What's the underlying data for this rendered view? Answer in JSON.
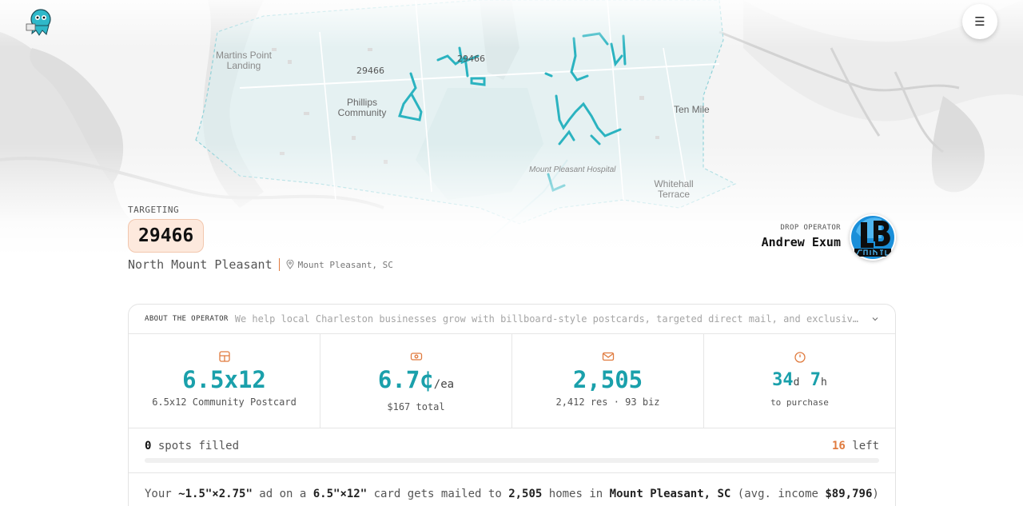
{
  "map": {
    "labels": {
      "martins_point": "Martins Point Landing",
      "zip_a": "29466",
      "zip_b": "29466",
      "phillips": "Phillips Community",
      "ten_mile": "Ten Mile",
      "hospital": "Mount Pleasant Hospital",
      "whitehall": "Whitehall Terrace"
    },
    "route_color": "#2bb3c0"
  },
  "header": {
    "menu_icon": "☰"
  },
  "targeting": {
    "label": "TARGETING",
    "zip": "29466",
    "area": "North Mount Pleasant",
    "city": "Mount Pleasant, SC"
  },
  "operator": {
    "label": "DROP OPERATOR",
    "name": "Andrew Exum"
  },
  "about": {
    "label": "ABOUT THE OPERATOR",
    "text": "We help local Charleston businesses grow with billboard-style postcards, targeted direct mail, and exclusive placement."
  },
  "stats": {
    "size": {
      "value": "6.5x12",
      "sub": "6.5x12 Community Postcard"
    },
    "price": {
      "value": "6.7¢",
      "unit": "/ea",
      "sub": "$167 total"
    },
    "homes": {
      "value": "2,505",
      "sub": "2,412 res · 93 biz"
    },
    "timer": {
      "days": "34",
      "days_unit": "d",
      "hours": "7",
      "hours_unit": "h",
      "sub": "to purchase"
    }
  },
  "spots": {
    "filled_count": "0",
    "filled_label": "spots filled",
    "left_count": "16",
    "left_label": "left",
    "progress": 0
  },
  "description": {
    "p1": "Your ",
    "ad_size": "~1.5\"×2.75\"",
    "p2": " ad on a ",
    "card_size": "6.5\"×12\"",
    "p3": " card gets mailed to ",
    "homes": "2,505",
    "p4": " homes in ",
    "city": "Mount Pleasant, SC",
    "p5": " (avg. income ",
    "income": "$89,796",
    "p6": ")"
  },
  "colors": {
    "accent": "#1aa0ab",
    "orange": "#e07b3f"
  }
}
